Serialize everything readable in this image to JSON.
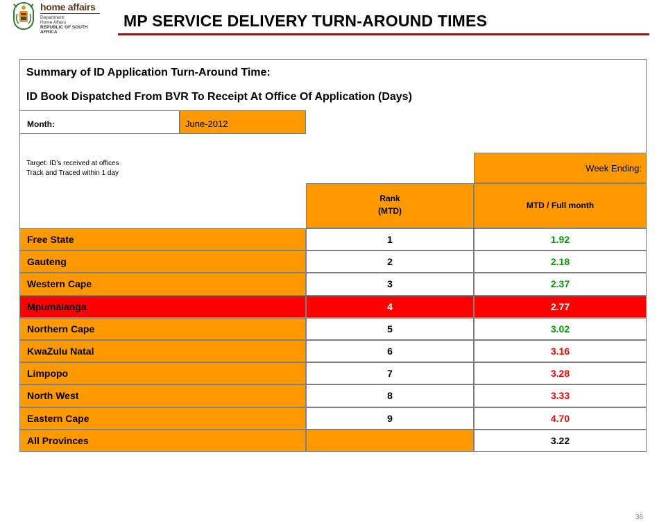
{
  "logo": {
    "brand": "home affairs",
    "lines": [
      "Department:",
      "Home Affairs",
      "REPUBLIC OF SOUTH AFRICA"
    ]
  },
  "title": "MP SERVICE DELIVERY TURN-AROUND TIMES",
  "summary": {
    "heading_1": "Summary of ID Application Turn-Around Time:",
    "heading_2": "ID Book Dispatched From BVR To Receipt At Office Of Application (Days)",
    "month_label": "Month:",
    "month_value": "June-2012",
    "target_line_1": "Target: ID’s received at offices",
    "target_line_2": "Track and Traced within 1 day",
    "week_ending": "Week Ending:",
    "col_rank_1": "Rank",
    "col_rank_2": "(MTD)",
    "col_mtd": "MTD / Full month"
  },
  "rows": [
    {
      "name": "Free State",
      "rank": "1",
      "value": "1.92",
      "value_color": "#00a000",
      "rank_color": "#000000"
    },
    {
      "name": "Gauteng",
      "rank": "2",
      "value": "2.18",
      "value_color": "#00a000",
      "rank_color": "#000000"
    },
    {
      "name": "Western Cape",
      "rank": "3",
      "value": "2.37",
      "value_color": "#00a000",
      "rank_color": "#000000"
    },
    {
      "name": "Mpumalanga",
      "rank": "4",
      "value": "2.77",
      "value_color": "#ffffff",
      "rank_color": "#ffffff",
      "highlight": true
    },
    {
      "name": "Northern Cape",
      "rank": "5",
      "value": "3.02",
      "value_color": "#00a000",
      "rank_color": "#000000"
    },
    {
      "name": "KwaZulu Natal",
      "rank": "6",
      "value": "3.16",
      "value_color": "#ff0000",
      "rank_color": "#000000"
    },
    {
      "name": "Limpopo",
      "rank": "7",
      "value": "3.28",
      "value_color": "#ff0000",
      "rank_color": "#000000"
    },
    {
      "name": "North West",
      "rank": "8",
      "value": "3.33",
      "value_color": "#ff0000",
      "rank_color": "#000000"
    },
    {
      "name": "Eastern Cape",
      "rank": "9",
      "value": "4.70",
      "value_color": "#ff0000",
      "rank_color": "#000000"
    },
    {
      "name": "All Provinces",
      "rank": "",
      "value": "3.22",
      "value_color": "#000000",
      "rank_color": "#000000",
      "total": true
    }
  ],
  "colors": {
    "orange": "#ff9900",
    "red": "#ff0000",
    "green": "#00a000",
    "rule": "#8b1a1a"
  },
  "page_number": "36"
}
